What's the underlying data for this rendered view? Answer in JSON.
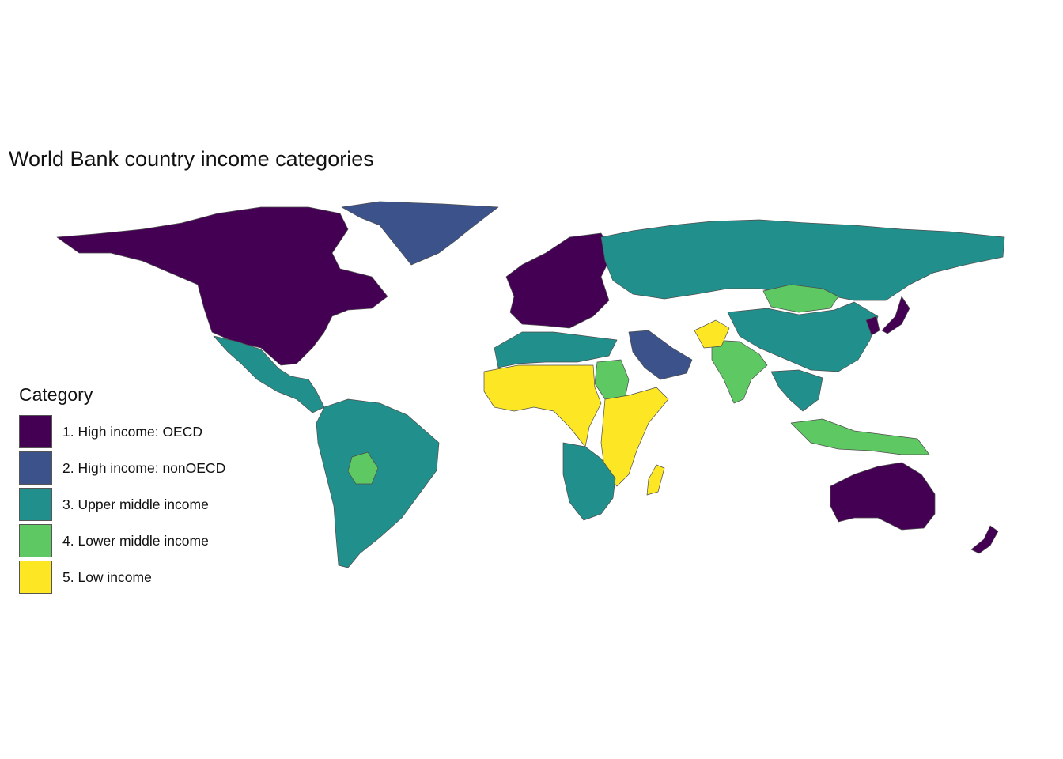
{
  "title": "World Bank country income categories",
  "legend": {
    "title": "Category",
    "items": [
      {
        "label": "1. High income: OECD",
        "color": "#440154"
      },
      {
        "label": "2. High income: nonOECD",
        "color": "#3b528b"
      },
      {
        "label": "3. Upper middle income",
        "color": "#21908c"
      },
      {
        "label": "4. Lower middle income",
        "color": "#5ec962"
      },
      {
        "label": "5. Low income",
        "color": "#fde725"
      }
    ]
  },
  "regions": [
    {
      "name": "North America",
      "category": 1
    },
    {
      "name": "Greenland",
      "category": 2
    },
    {
      "name": "Mexico and Central America",
      "category": 3
    },
    {
      "name": "South America",
      "category": 3
    },
    {
      "name": "Bolivia",
      "category": 4
    },
    {
      "name": "Western Europe",
      "category": 1
    },
    {
      "name": "Russia",
      "category": 3
    },
    {
      "name": "Mongolia",
      "category": 4
    },
    {
      "name": "China",
      "category": 3
    },
    {
      "name": "Japan",
      "category": 1
    },
    {
      "name": "Korea",
      "category": 1
    },
    {
      "name": "Arabian Peninsula",
      "category": 2
    },
    {
      "name": "North Africa",
      "category": 3
    },
    {
      "name": "Sudan",
      "category": 4
    },
    {
      "name": "West and Central Africa",
      "category": 5
    },
    {
      "name": "East Africa",
      "category": 5
    },
    {
      "name": "Southern Africa",
      "category": 3
    },
    {
      "name": "Madagascar",
      "category": 5
    },
    {
      "name": "India",
      "category": 4
    },
    {
      "name": "Afghanistan",
      "category": 5
    },
    {
      "name": "Southeast Asia",
      "category": 3
    },
    {
      "name": "Indonesia",
      "category": 4
    },
    {
      "name": "Australia",
      "category": 1
    },
    {
      "name": "New Zealand",
      "category": 1
    }
  ]
}
